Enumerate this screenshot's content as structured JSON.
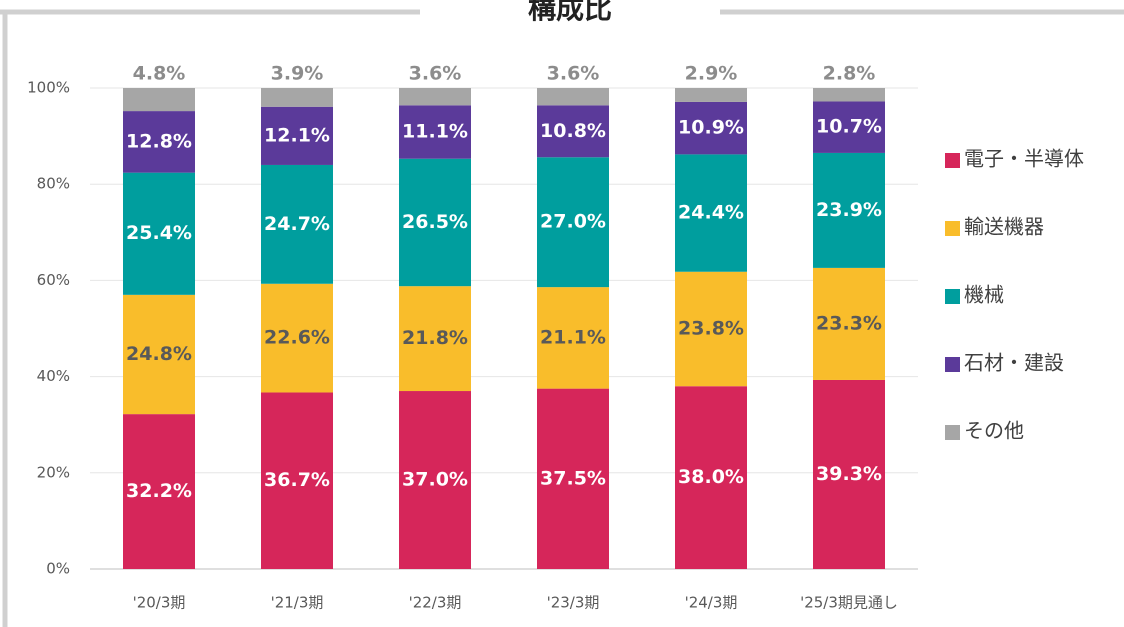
{
  "chart_data": {
    "type": "stacked_bar",
    "title": "構成比",
    "categories": [
      "'20/3期",
      "'21/3期",
      "'22/3期",
      "'23/3期",
      "'24/3期",
      "'25/3期見通し"
    ],
    "series": [
      {
        "name": "電子・半導体",
        "color": "#d6265a",
        "values": [
          32.2,
          36.7,
          37.0,
          37.5,
          38.0,
          39.3
        ],
        "value_labels": [
          "32.2%",
          "36.7%",
          "37.0%",
          "37.5%",
          "38.0%",
          "39.3%"
        ]
      },
      {
        "name": "輸送機器",
        "color": "#f9bd2b",
        "values": [
          24.8,
          22.6,
          21.8,
          21.1,
          23.8,
          23.3
        ],
        "value_labels": [
          "24.8%",
          "22.6%",
          "21.8%",
          "21.1%",
          "23.8%",
          "23.3%"
        ]
      },
      {
        "name": "機械",
        "color": "#009e9e",
        "values": [
          25.4,
          24.7,
          26.5,
          27.0,
          24.4,
          23.9
        ],
        "value_labels": [
          "25.4%",
          "24.7%",
          "26.5%",
          "27.0%",
          "24.4%",
          "23.9%"
        ]
      },
      {
        "name": "石材・建設",
        "color": "#5b3a9a",
        "values": [
          12.8,
          12.1,
          11.1,
          10.8,
          10.9,
          10.7
        ],
        "value_labels": [
          "12.8%",
          "12.1%",
          "11.1%",
          "10.8%",
          "10.9%",
          "10.7%"
        ]
      },
      {
        "name": "その他",
        "color": "#a6a6a6",
        "values": [
          4.8,
          3.9,
          3.6,
          3.6,
          2.9,
          2.8
        ],
        "value_labels": [
          "4.8%",
          "3.9%",
          "3.6%",
          "3.6%",
          "2.9%",
          "2.8%"
        ]
      }
    ],
    "ylim": [
      0,
      100
    ],
    "yticks": [
      {
        "value": 0,
        "label": "0%"
      },
      {
        "value": 20,
        "label": "20%"
      },
      {
        "value": 40,
        "label": "40%"
      },
      {
        "value": 60,
        "label": "60%"
      },
      {
        "value": 80,
        "label": "80%"
      },
      {
        "value": 100,
        "label": "100%"
      }
    ],
    "grid": true,
    "legend": "right"
  }
}
